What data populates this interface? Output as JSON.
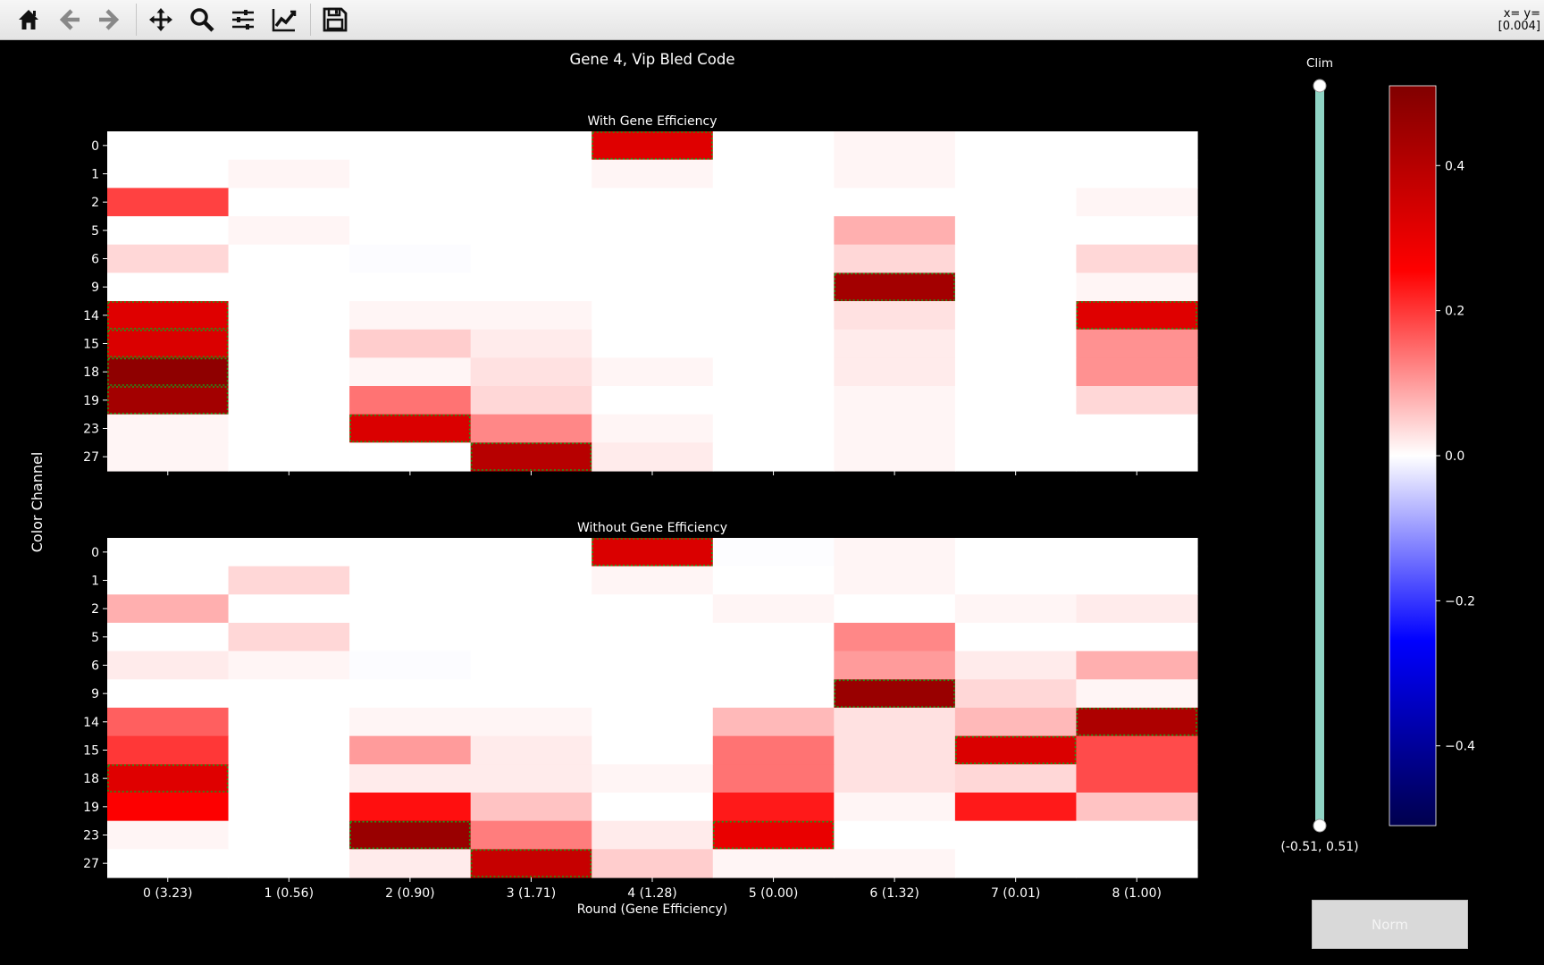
{
  "toolbar": {
    "buttons": [
      {
        "name": "home-icon",
        "tip": "Home"
      },
      {
        "name": "back-icon",
        "tip": "Back"
      },
      {
        "name": "forward-icon",
        "tip": "Forward"
      },
      {
        "name": "pan-icon",
        "tip": "Pan"
      },
      {
        "name": "zoom-icon",
        "tip": "Zoom"
      },
      {
        "name": "subplots-icon",
        "tip": "Subplots"
      },
      {
        "name": "axes-edit-icon",
        "tip": "Customize"
      },
      {
        "name": "save-icon",
        "tip": "Save"
      }
    ],
    "coords_line1": "x= y=",
    "coords_line2": "[0.004]"
  },
  "figure": {
    "title": "Gene 4, Vip Bled Code",
    "ylabel": "Color Channel",
    "xlabel": "Round (Gene Efficiency)",
    "slider_label": "Clim",
    "slider_value": "(-0.51, 0.51)",
    "norm_button": "Norm"
  },
  "colors": {
    "slider_track": "#8fd3c4",
    "highlight_border": "#1a9e1a",
    "background": "#000000"
  },
  "chart_data": [
    {
      "type": "heatmap",
      "title": "With Gene Efficiency",
      "cmap": "seismic",
      "clim": [
        -0.51,
        0.51
      ],
      "x_ticks": [
        "0 (3.23)",
        "1 (0.56)",
        "2 (0.90)",
        "3 (1.71)",
        "4 (1.28)",
        "5 (0.00)",
        "6 (1.32)",
        "7 (0.01)",
        "8 (1.00)"
      ],
      "y_ticks": [
        "0",
        "1",
        "2",
        "5",
        "6",
        "9",
        "14",
        "15",
        "18",
        "19",
        "23",
        "27"
      ],
      "values": [
        [
          0.0,
          0.0,
          0.0,
          0.0,
          0.32,
          0.0,
          0.01,
          0.0,
          0.0
        ],
        [
          0.0,
          0.01,
          0.0,
          0.0,
          0.01,
          0.0,
          0.01,
          0.0,
          0.0
        ],
        [
          0.19,
          0.0,
          0.0,
          0.0,
          0.0,
          0.0,
          0.0,
          0.0,
          0.01
        ],
        [
          0.0,
          0.01,
          0.0,
          0.0,
          0.0,
          0.0,
          0.08,
          0.0,
          0.0
        ],
        [
          0.04,
          0.0,
          -0.003,
          0.0,
          0.0,
          0.0,
          0.04,
          0.0,
          0.04
        ],
        [
          0.0,
          0.0,
          0.0,
          0.0,
          0.0,
          0.0,
          0.44,
          0.0,
          0.01
        ],
        [
          0.32,
          0.0,
          0.01,
          0.01,
          0.0,
          0.0,
          0.03,
          0.0,
          0.32
        ],
        [
          0.33,
          0.0,
          0.05,
          0.02,
          0.0,
          0.0,
          0.02,
          0.0,
          0.11
        ],
        [
          0.48,
          0.0,
          0.01,
          0.03,
          0.01,
          0.0,
          0.02,
          0.0,
          0.11
        ],
        [
          0.44,
          0.0,
          0.14,
          0.04,
          0.0,
          0.0,
          0.01,
          0.0,
          0.04
        ],
        [
          0.01,
          0.0,
          0.33,
          0.12,
          0.01,
          0.0,
          0.01,
          0.0,
          0.0
        ],
        [
          0.01,
          0.0,
          0.0,
          0.4,
          0.02,
          0.0,
          0.01,
          0.0,
          0.0
        ]
      ],
      "highlighted": [
        [
          0,
          4
        ],
        [
          5,
          6
        ],
        [
          6,
          0
        ],
        [
          7,
          0
        ],
        [
          8,
          0
        ],
        [
          9,
          0
        ],
        [
          6,
          8
        ],
        [
          10,
          2
        ],
        [
          11,
          3
        ]
      ]
    },
    {
      "type": "heatmap",
      "title": "Without Gene Efficiency",
      "cmap": "seismic",
      "clim": [
        -0.51,
        0.51
      ],
      "x_ticks": [
        "0 (3.23)",
        "1 (0.56)",
        "2 (0.90)",
        "3 (1.71)",
        "4 (1.28)",
        "5 (0.00)",
        "6 (1.32)",
        "7 (0.01)",
        "8 (1.00)"
      ],
      "y_ticks": [
        "0",
        "1",
        "2",
        "5",
        "6",
        "9",
        "14",
        "15",
        "18",
        "19",
        "23",
        "27"
      ],
      "values": [
        [
          0.0,
          0.0,
          0.0,
          0.0,
          0.33,
          -0.002,
          0.01,
          0.0,
          0.0
        ],
        [
          0.0,
          0.04,
          0.0,
          0.0,
          0.01,
          0.0,
          0.01,
          0.0,
          0.0
        ],
        [
          0.08,
          0.0,
          0.0,
          0.0,
          0.0,
          0.01,
          0.0,
          0.01,
          0.02
        ],
        [
          0.0,
          0.04,
          0.0,
          0.0,
          0.0,
          0.0,
          0.12,
          0.0,
          0.0
        ],
        [
          0.02,
          0.01,
          -0.003,
          0.0,
          0.0,
          0.0,
          0.1,
          0.02,
          0.08
        ],
        [
          0.0,
          0.0,
          0.0,
          0.0,
          0.0,
          0.0,
          0.46,
          0.04,
          0.01
        ],
        [
          0.16,
          0.0,
          0.01,
          0.01,
          0.0,
          0.07,
          0.03,
          0.07,
          0.42
        ],
        [
          0.2,
          0.0,
          0.1,
          0.02,
          0.0,
          0.14,
          0.03,
          0.33,
          0.18
        ],
        [
          0.32,
          0.0,
          0.02,
          0.02,
          0.01,
          0.14,
          0.03,
          0.04,
          0.18
        ],
        [
          0.26,
          0.0,
          0.24,
          0.06,
          0.0,
          0.23,
          0.01,
          0.23,
          0.06
        ],
        [
          0.01,
          0.0,
          0.46,
          0.13,
          0.02,
          0.3,
          0.0,
          0.0,
          0.0
        ],
        [
          0.0,
          0.0,
          0.02,
          0.37,
          0.05,
          0.01,
          0.01,
          0.0,
          0.0
        ]
      ],
      "highlighted": [
        [
          0,
          4
        ],
        [
          5,
          6
        ],
        [
          6,
          8
        ],
        [
          7,
          7
        ],
        [
          8,
          0
        ],
        [
          10,
          2
        ],
        [
          10,
          5
        ],
        [
          11,
          3
        ]
      ]
    },
    {
      "type": "colorbar",
      "range": [
        -0.51,
        0.51
      ],
      "ticks": [
        "0.4",
        "0.2",
        "0.0",
        "−0.2",
        "−0.4"
      ],
      "tick_values": [
        0.4,
        0.2,
        0.0,
        -0.2,
        -0.4
      ]
    }
  ]
}
